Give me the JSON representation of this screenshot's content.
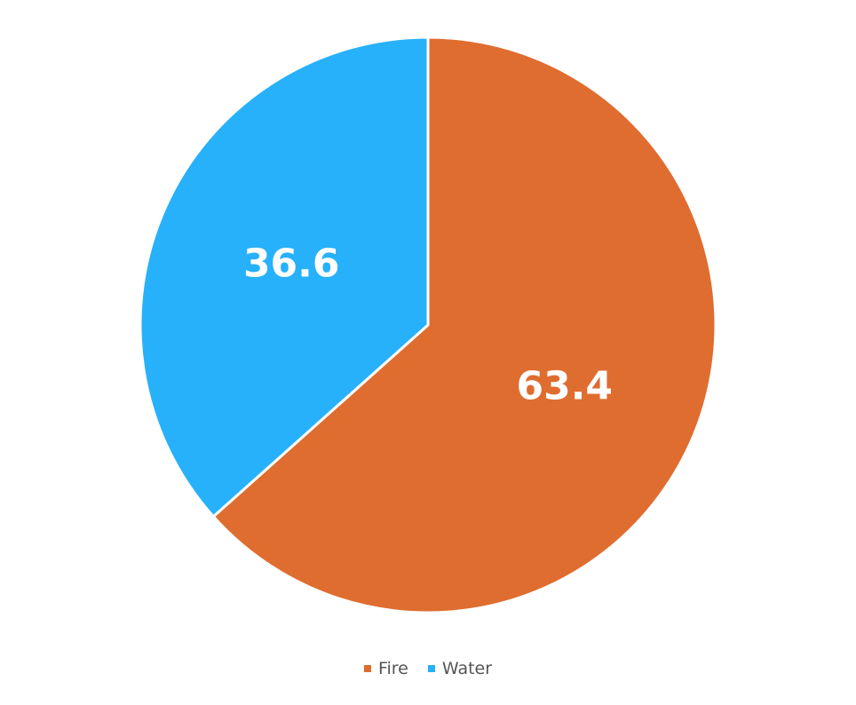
{
  "chart_data": {
    "type": "pie",
    "title": "",
    "categories": [
      "Fire",
      "Water"
    ],
    "values": [
      63.4,
      36.6
    ],
    "colors": [
      "#DF6D30",
      "#27B1FA"
    ],
    "data_labels": [
      "63.4",
      "36.6"
    ],
    "start_angle_degrees": 0,
    "direction": "clockwise",
    "legend": {
      "position": "bottom",
      "entries": [
        {
          "label": "Fire",
          "color": "#DF6D30"
        },
        {
          "label": "Water",
          "color": "#27B1FA"
        }
      ]
    }
  }
}
